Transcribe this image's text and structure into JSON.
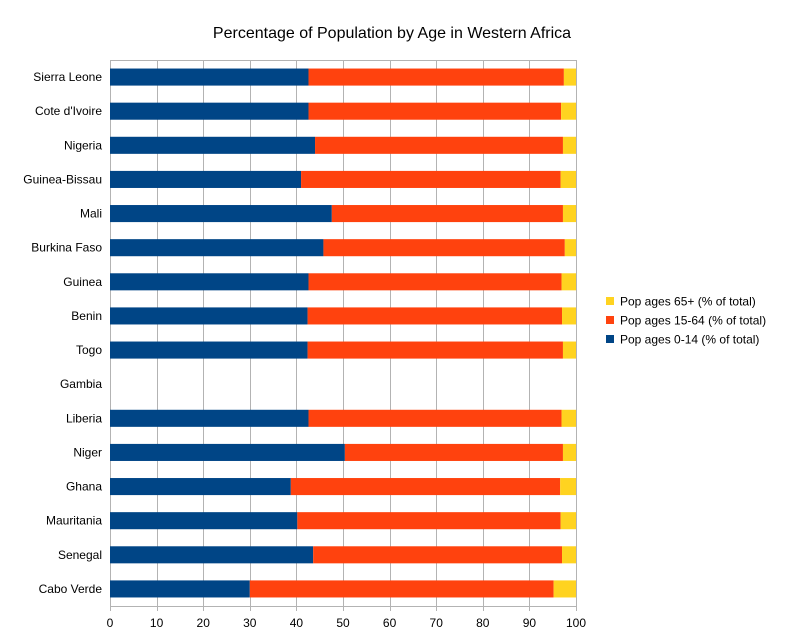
{
  "chart_data": {
    "type": "bar",
    "orientation": "horizontal",
    "stacked": true,
    "title": "Percentage of Population by Age in Western Africa",
    "xlabel": "",
    "ylabel": "",
    "xlim": [
      0,
      100
    ],
    "x_ticks": [
      0,
      10,
      20,
      30,
      40,
      50,
      60,
      70,
      80,
      90,
      100
    ],
    "grid": true,
    "legend_position": "right",
    "categories": [
      "Sierra Leone",
      "Cote d'Ivoire",
      "Nigeria",
      "Guinea-Bissau",
      "Mali",
      "Burkina Faso",
      "Guinea",
      "Benin",
      "Togo",
      "Gambia",
      "Liberia",
      "Niger",
      "Ghana",
      "Mauritania",
      "Senegal",
      "Cabo Verde"
    ],
    "series": [
      {
        "name": "Pop ages 0-14 (% of total)",
        "color": "#004586",
        "values": [
          42.6,
          42.6,
          44.0,
          41.0,
          47.6,
          45.8,
          42.6,
          42.4,
          42.4,
          null,
          42.6,
          50.4,
          38.8,
          40.2,
          43.6,
          30.0
        ]
      },
      {
        "name": "Pop ages 15-64 (% of total)",
        "color": "#ff420e",
        "values": [
          54.8,
          54.2,
          53.2,
          55.7,
          49.6,
          51.8,
          54.3,
          54.6,
          54.8,
          null,
          54.3,
          46.8,
          57.8,
          56.5,
          53.4,
          65.2
        ]
      },
      {
        "name": "Pop ages 65+ (% of total)",
        "color": "#ffd320",
        "values": [
          2.6,
          3.2,
          2.8,
          3.3,
          2.8,
          2.4,
          3.1,
          3.0,
          2.8,
          null,
          3.1,
          2.8,
          3.4,
          3.3,
          3.0,
          4.8
        ]
      }
    ],
    "legend_order": [
      "Pop ages 65+ (% of total)",
      "Pop ages 15-64 (% of total)",
      "Pop ages 0-14 (% of total)"
    ]
  }
}
